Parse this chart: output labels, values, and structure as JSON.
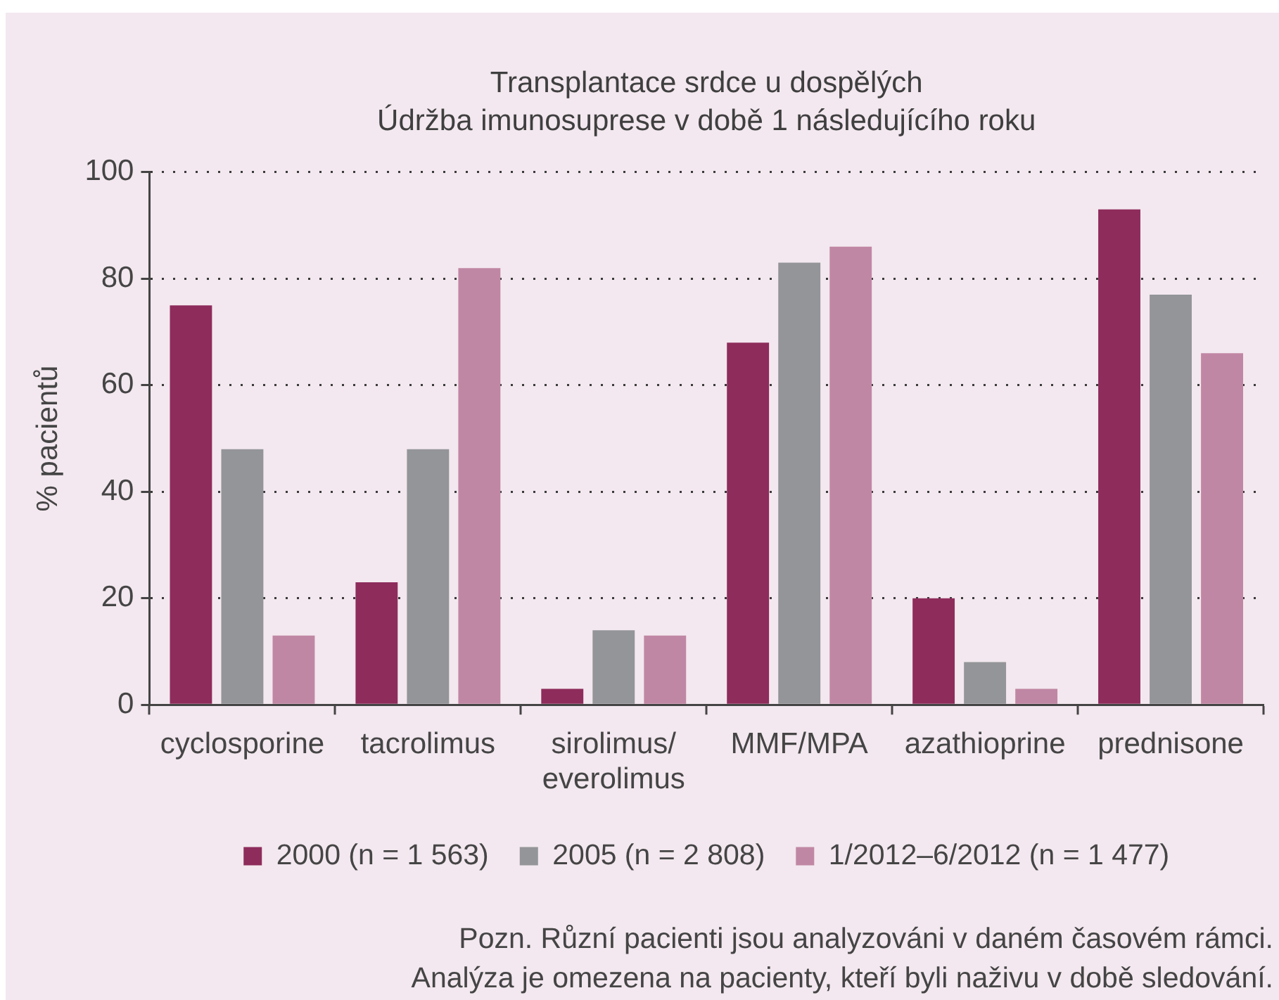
{
  "chart_data": {
    "type": "bar",
    "title": "Transplantace srdce u dospělých",
    "subtitle": "Údržba imunosuprese v době 1 následujícího roku",
    "ylabel": "% pacientů",
    "categories": [
      "cyclosporine",
      "tacrolimus",
      "sirolimus/everolimus",
      "MMF/MPA",
      "azathioprine",
      "prednisone"
    ],
    "series": [
      {
        "name": "2000 (n = 1 563)",
        "color": "#8e2c5c",
        "values": [
          75,
          23,
          3,
          68,
          20,
          93
        ]
      },
      {
        "name": "2005 (n = 2 808)",
        "color": "#939598",
        "values": [
          48,
          48,
          14,
          83,
          8,
          77
        ]
      },
      {
        "name": "1/2012–6/2012 (n = 1 477)",
        "color": "#c087a4",
        "values": [
          13,
          82,
          13,
          86,
          3,
          66
        ]
      }
    ],
    "ylim": [
      0,
      100
    ],
    "yticks": [
      0,
      20,
      40,
      60,
      80,
      100
    ],
    "grid": "y",
    "legend": "bottom",
    "annotations": [
      "Pozn. Různí pacienti jsou analyzováni v daném časovém rámci.",
      "Analýza je omezena na pacienty, kteří byli naživu v době sledování."
    ]
  }
}
